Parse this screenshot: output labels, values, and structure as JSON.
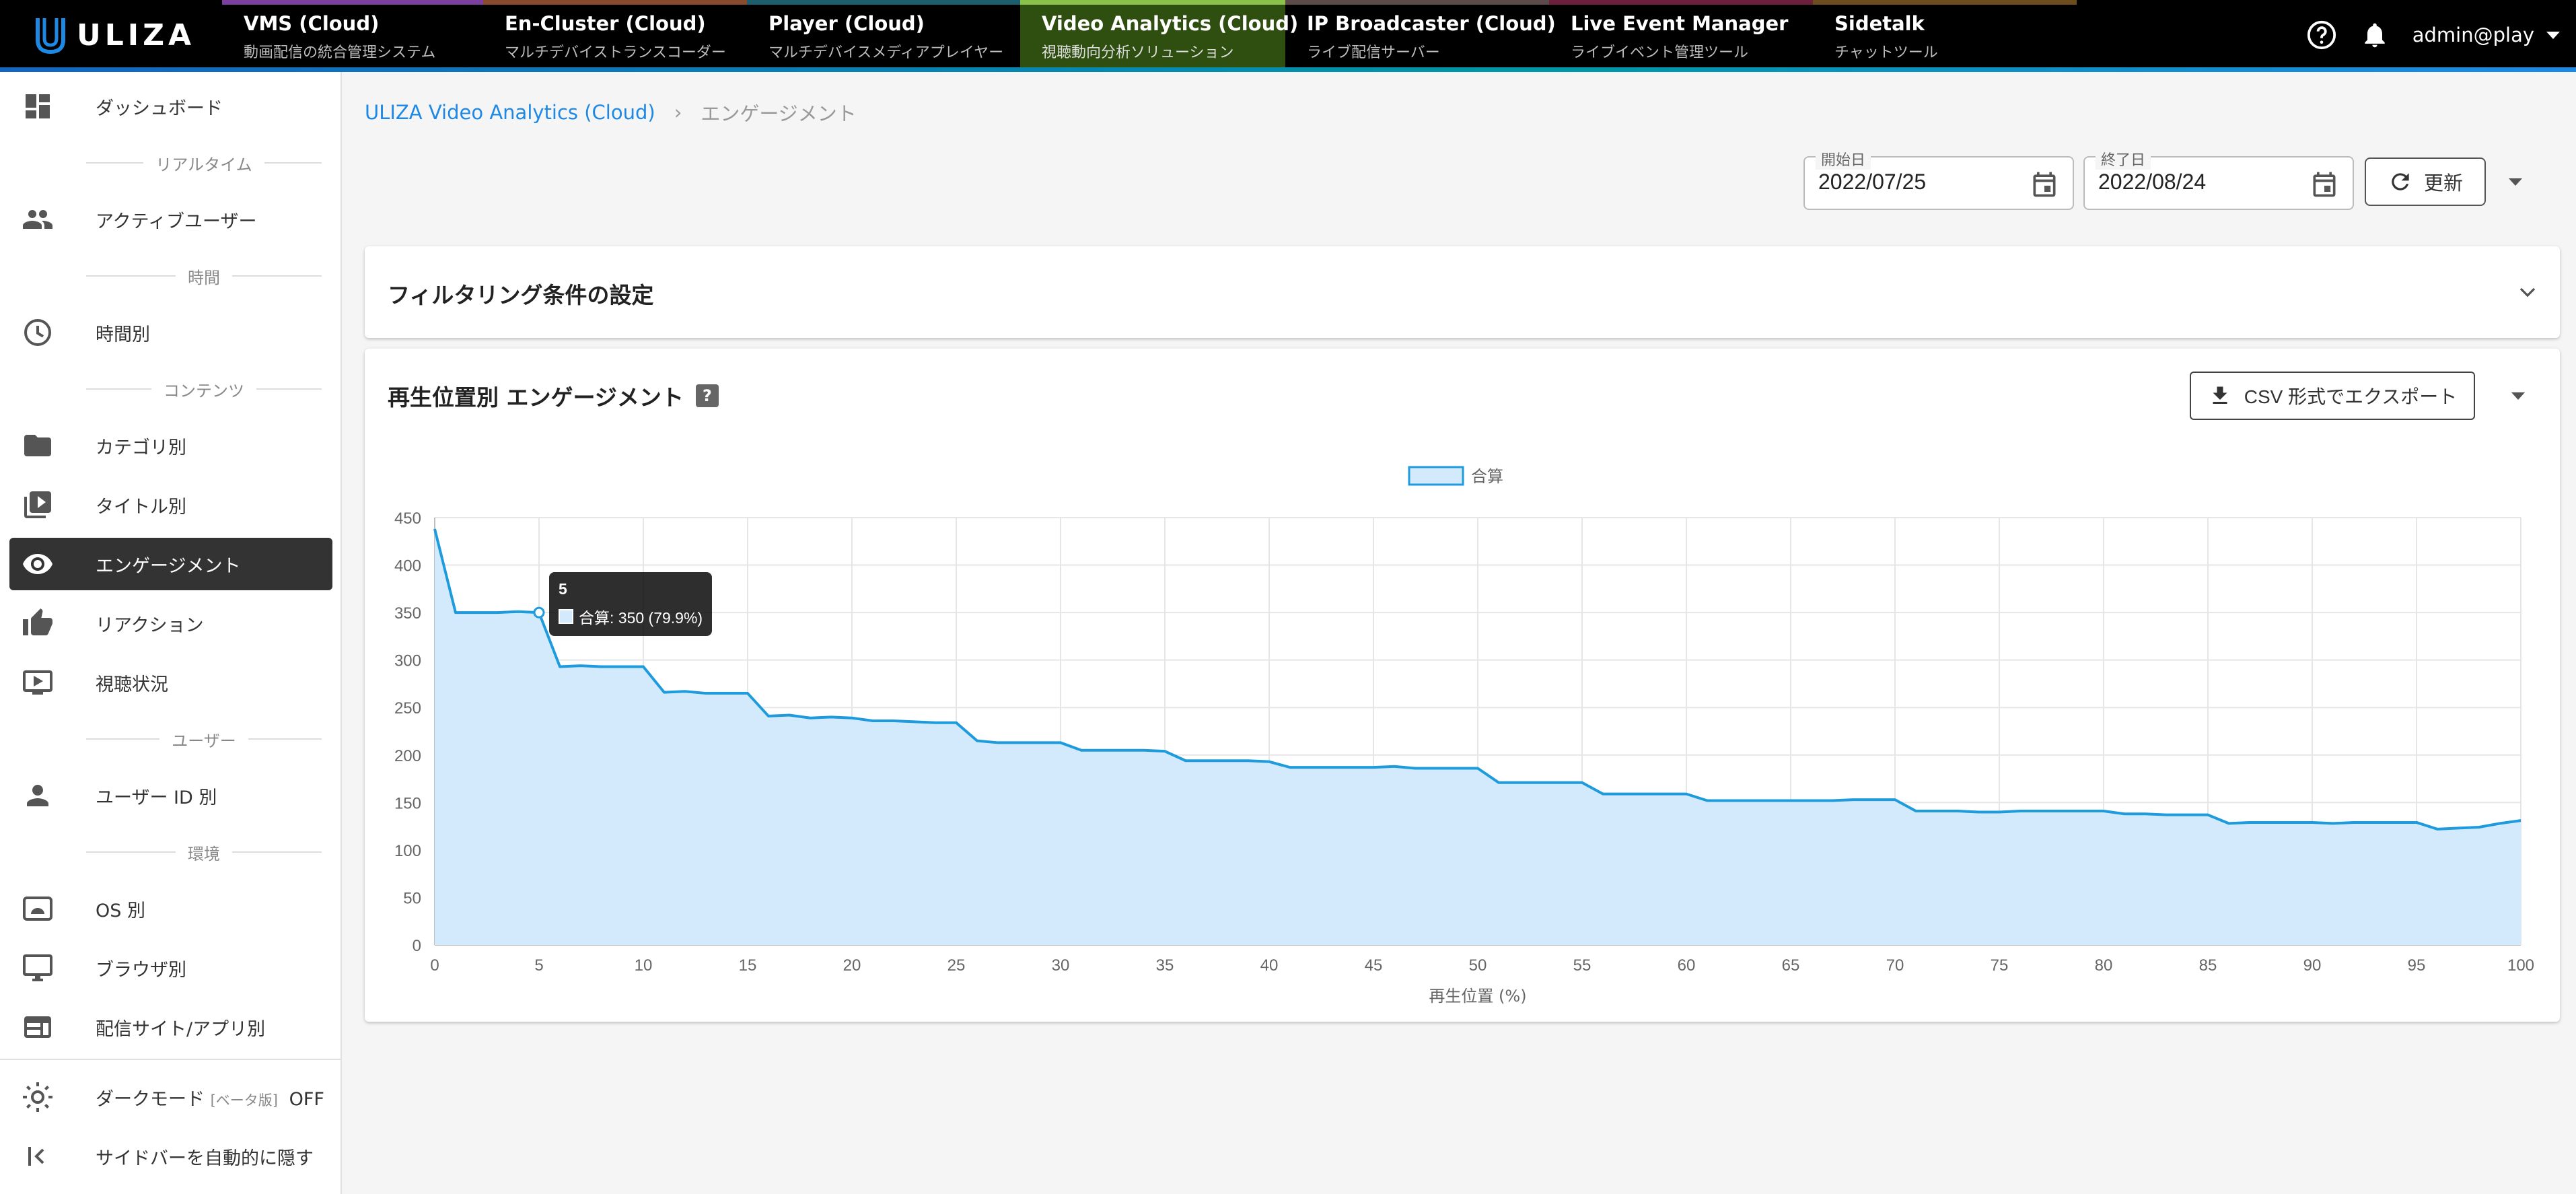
{
  "app": {
    "logo_text": "ULIZA"
  },
  "products": [
    {
      "name": "VMS (Cloud)",
      "desc": "動画配信の統合管理システム",
      "color": "#7b3fa0"
    },
    {
      "name": "En-Cluster (Cloud)",
      "desc": "マルチデバイストランスコーダー",
      "color": "#8a4a2e"
    },
    {
      "name": "Player (Cloud)",
      "desc": "マルチデバイスメディアプレイヤー",
      "color": "#1d5e6e"
    },
    {
      "name": "Video Analytics (Cloud)",
      "desc": "視聴動向分析ソリューション",
      "color": "#8bc34a",
      "active": true
    },
    {
      "name": "IP Broadcaster (Cloud)",
      "desc": "ライブ配信サーバー",
      "color": "#5d4b4b"
    },
    {
      "name": "Live Event Manager",
      "desc": "ライブイベント管理ツール",
      "color": "#6e1f3c"
    },
    {
      "name": "Sidetalk",
      "desc": "チャットツール",
      "color": "#6d4c1e"
    }
  ],
  "header": {
    "user": "admin@play"
  },
  "sidebar": {
    "items": [
      {
        "label": "ダッシュボード",
        "icon": "dashboard-icon"
      },
      {
        "label": "アクティブユーザー",
        "icon": "people-icon"
      },
      {
        "label": "時間別",
        "icon": "clock-icon"
      },
      {
        "label": "カテゴリ別",
        "icon": "folder-icon"
      },
      {
        "label": "タイトル別",
        "icon": "video-library-icon"
      },
      {
        "label": "エンゲージメント",
        "icon": "eye-icon",
        "active": true
      },
      {
        "label": "リアクション",
        "icon": "thumb-up-icon"
      },
      {
        "label": "視聴状況",
        "icon": "play-screen-icon"
      },
      {
        "label": "ユーザー ID 別",
        "icon": "person-icon"
      },
      {
        "label": "OS 別",
        "icon": "os-icon"
      },
      {
        "label": "ブラウザ別",
        "icon": "monitor-icon"
      },
      {
        "label": "配信サイト/アプリ別",
        "icon": "site-icon"
      }
    ],
    "sections": [
      "リアルタイム",
      "時間",
      "コンテンツ",
      "ユーザー",
      "環境"
    ],
    "dark_mode": {
      "label": "ダークモード",
      "beta": "[ベータ版]",
      "state": "OFF"
    },
    "auto_hide": {
      "label": "サイドバーを自動的に隠す"
    }
  },
  "breadcrumb": {
    "root": "ULIZA Video Analytics (Cloud)",
    "sep": "›",
    "current": "エンゲージメント"
  },
  "filters": {
    "start_label": "開始日",
    "start_value": "2022/07/25",
    "end_label": "終了日",
    "end_value": "2022/08/24",
    "refresh_label": "更新"
  },
  "filter_panel": {
    "title": "フィルタリング条件の設定"
  },
  "engagement_panel": {
    "title": "再生位置別 エンゲージメント",
    "help": "?",
    "export_label": "CSV 形式でエクスポート"
  },
  "tooltip": {
    "title": "5",
    "text": "合算: 350 (79.9%)"
  },
  "chart_data": {
    "type": "area",
    "xlabel": "再生位置 (%)",
    "ylabel": "",
    "xlim": [
      0,
      100
    ],
    "ylim": [
      0,
      450
    ],
    "xticks": [
      0,
      5,
      10,
      15,
      20,
      25,
      30,
      35,
      40,
      45,
      50,
      55,
      60,
      65,
      70,
      75,
      80,
      85,
      90,
      95,
      100
    ],
    "yticks": [
      0,
      50,
      100,
      150,
      200,
      250,
      300,
      350,
      400,
      450
    ],
    "grid": true,
    "legend": "top-center",
    "series": [
      {
        "name": "合算",
        "color": "#1e9bdc",
        "fill": "#d2eafc",
        "x": [
          0,
          1,
          2,
          3,
          4,
          5,
          6,
          7,
          8,
          9,
          10,
          11,
          12,
          13,
          14,
          15,
          16,
          17,
          18,
          19,
          20,
          21,
          22,
          23,
          24,
          25,
          26,
          27,
          28,
          29,
          30,
          31,
          32,
          33,
          34,
          35,
          36,
          37,
          38,
          39,
          40,
          41,
          42,
          43,
          44,
          45,
          46,
          47,
          48,
          49,
          50,
          51,
          52,
          53,
          54,
          55,
          56,
          57,
          58,
          59,
          60,
          61,
          62,
          63,
          64,
          65,
          66,
          67,
          68,
          69,
          70,
          71,
          72,
          73,
          74,
          75,
          76,
          77,
          78,
          79,
          80,
          81,
          82,
          83,
          84,
          85,
          86,
          87,
          88,
          89,
          90,
          91,
          92,
          93,
          94,
          95,
          96,
          97,
          98,
          99,
          100
        ],
        "values": [
          438,
          350,
          350,
          350,
          351,
          350,
          293,
          294,
          293,
          293,
          293,
          266,
          267,
          265,
          265,
          265,
          241,
          242,
          239,
          240,
          239,
          236,
          236,
          235,
          234,
          234,
          215,
          213,
          213,
          213,
          213,
          205,
          205,
          205,
          205,
          204,
          194,
          194,
          194,
          194,
          193,
          187,
          187,
          187,
          187,
          187,
          188,
          186,
          186,
          186,
          186,
          171,
          171,
          171,
          171,
          171,
          159,
          159,
          159,
          159,
          159,
          152,
          152,
          152,
          152,
          152,
          152,
          152,
          153,
          153,
          153,
          141,
          141,
          141,
          140,
          140,
          141,
          141,
          141,
          141,
          141,
          138,
          138,
          137,
          137,
          137,
          128,
          129,
          129,
          129,
          129,
          128,
          129,
          129,
          129,
          129,
          122,
          123,
          124,
          128,
          131
        ]
      }
    ]
  }
}
